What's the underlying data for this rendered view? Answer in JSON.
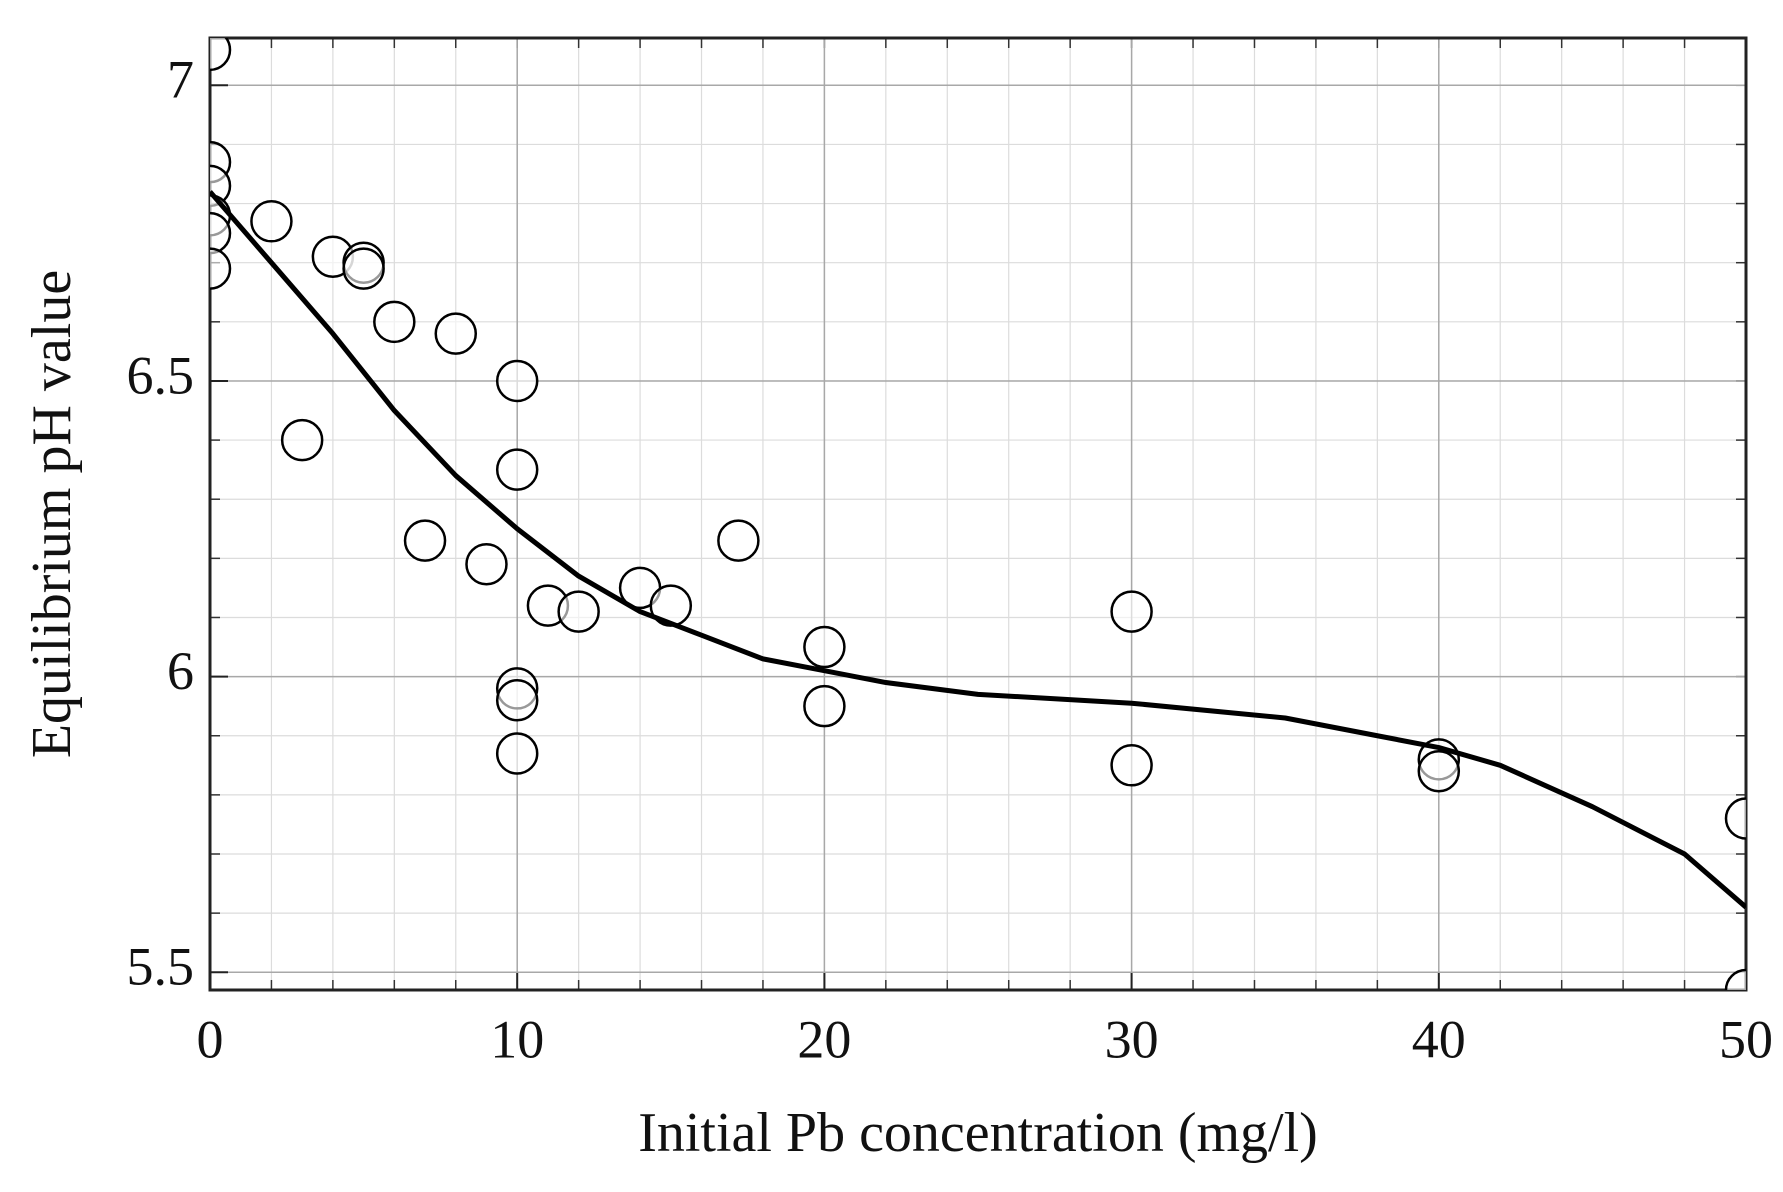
{
  "chart_data": {
    "type": "scatter",
    "x_label": "Initial Pb concentration (mg/l)",
    "y_label": "Equilibrium pH value",
    "xlim": [
      0,
      50
    ],
    "ylim": [
      5.47,
      7.08
    ],
    "xticks": [
      0,
      10,
      20,
      30,
      40,
      50
    ],
    "yticks": [
      5.5,
      6,
      6.5,
      7
    ],
    "grid": true,
    "minor_grid": true,
    "series": [
      {
        "type": "scatter",
        "color": "#000000",
        "marker": "open-circle",
        "x": [
          0,
          0,
          0,
          0,
          0,
          0,
          2,
          3,
          4,
          5,
          5,
          6,
          7,
          8,
          9,
          10,
          10,
          10,
          10,
          10,
          11,
          12,
          14,
          15,
          17.2,
          20,
          20,
          30,
          30,
          40,
          40,
          50,
          50
        ],
        "values": [
          7.06,
          6.87,
          6.83,
          6.78,
          6.75,
          6.69,
          6.77,
          6.4,
          6.71,
          6.7,
          6.69,
          6.6,
          6.23,
          6.58,
          6.19,
          6.5,
          6.35,
          5.98,
          5.96,
          5.87,
          6.12,
          6.11,
          6.15,
          6.12,
          6.23,
          6.05,
          5.95,
          6.11,
          5.85,
          5.86,
          5.84,
          5.76,
          5.47
        ]
      },
      {
        "type": "line",
        "color": "#000000",
        "x": [
          0,
          2,
          4,
          6,
          8,
          10,
          12,
          14,
          16,
          18,
          20,
          22,
          25,
          30,
          35,
          38,
          40,
          42,
          45,
          48,
          50
        ],
        "values": [
          6.82,
          6.7,
          6.58,
          6.45,
          6.34,
          6.25,
          6.17,
          6.11,
          6.07,
          6.03,
          6.01,
          5.99,
          5.97,
          5.955,
          5.93,
          5.9,
          5.88,
          5.85,
          5.78,
          5.7,
          5.61
        ]
      }
    ]
  }
}
